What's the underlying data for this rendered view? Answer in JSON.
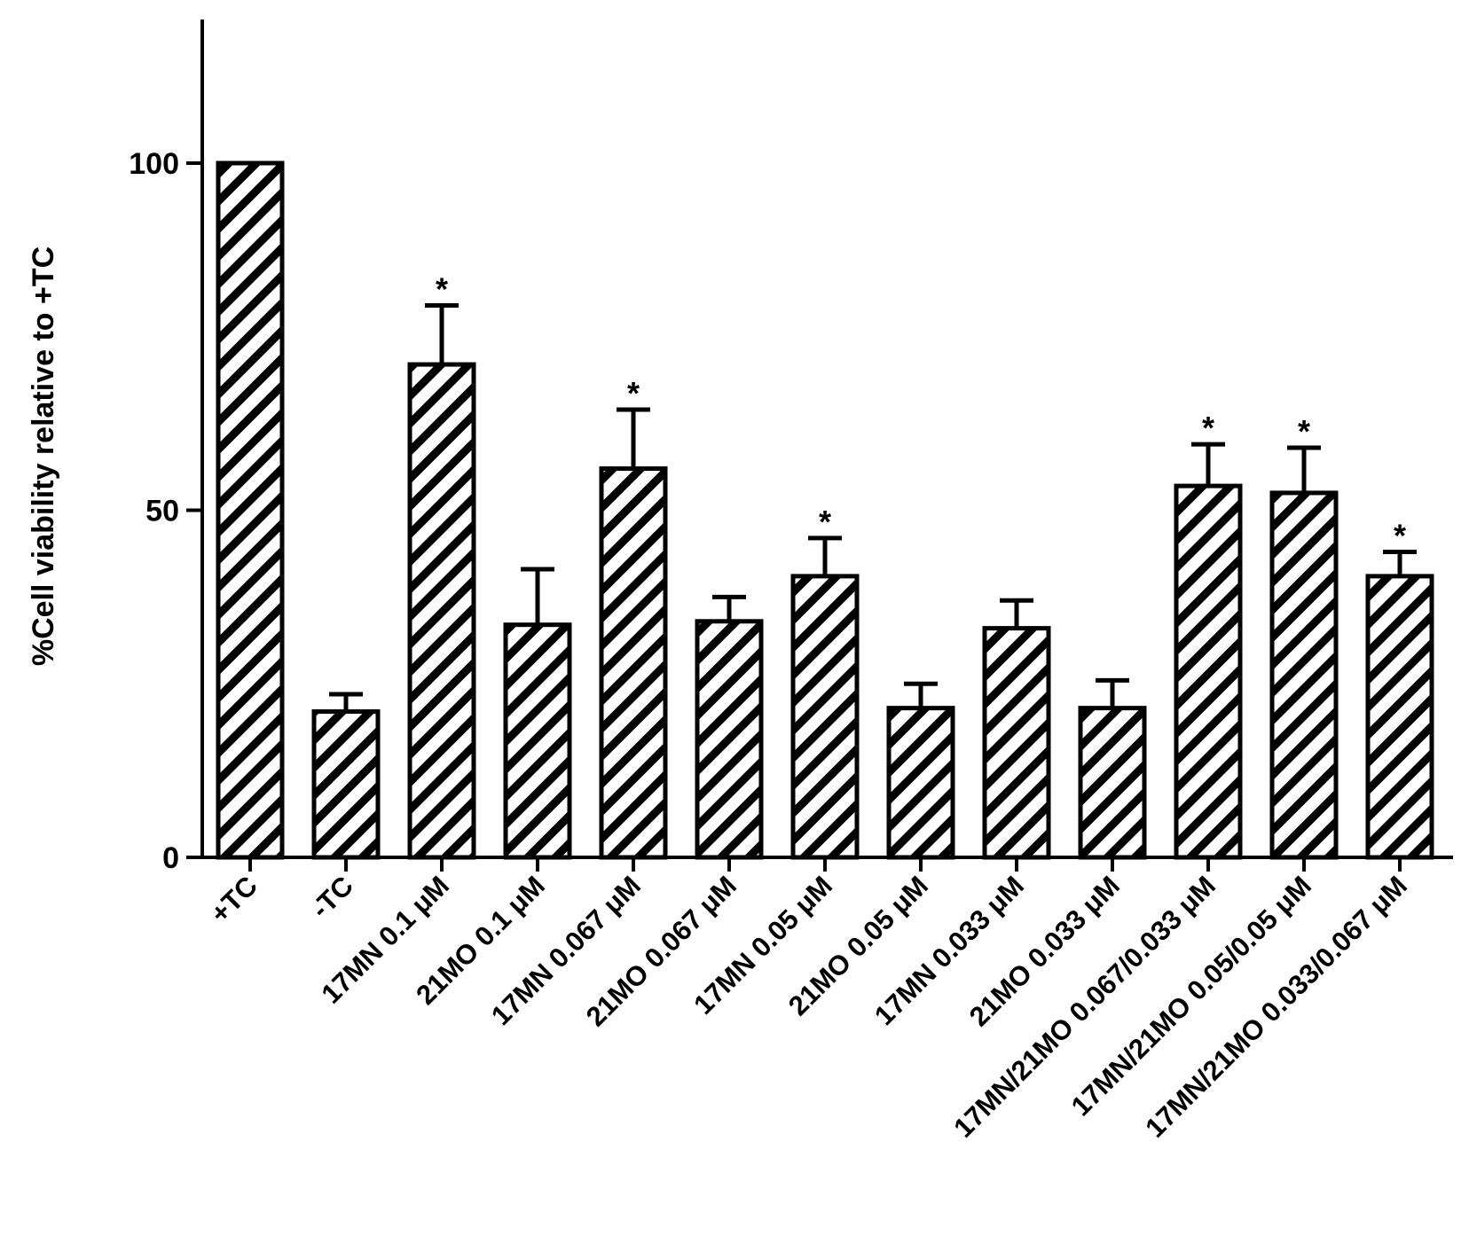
{
  "chart_data": {
    "type": "bar",
    "title": "",
    "xlabel": "",
    "ylabel": "%Cell viability relative to +TC",
    "ylim": [
      0,
      120
    ],
    "yticks": [
      0,
      50,
      100
    ],
    "grid": false,
    "legend": "none",
    "bar_fill": "hatched",
    "colors": {
      "bar_stroke": "#000000",
      "bar_hatch": "#000000",
      "background": "#ffffff"
    },
    "categories": [
      "+TC",
      "-TC",
      "17MN 0.1 μM",
      "21MO 0.1 μM",
      "17MN 0.067 μM",
      "21MO 0.067 μM",
      "17MN 0.05 μM",
      "21MO 0.05 μM",
      "17MN 0.033 μM",
      "21MO 0.033 μM",
      "17MN/21MO 0.067/0.033 μM",
      "17MN/21MO 0.05/0.05 μM",
      "17MN/21MO 0.033/0.067 μM"
    ],
    "values": [
      100,
      21,
      71,
      33.5,
      56,
      34,
      40.5,
      21.5,
      33,
      21.5,
      53.5,
      52.5,
      40.5
    ],
    "error": [
      0,
      2.5,
      8.5,
      8,
      8.5,
      3.5,
      5.5,
      3.5,
      4,
      4,
      6,
      6.5,
      3.5
    ],
    "significance": [
      "",
      "",
      "*",
      "",
      "*",
      "",
      "*",
      "",
      "",
      "",
      "*",
      "*",
      "*"
    ]
  }
}
